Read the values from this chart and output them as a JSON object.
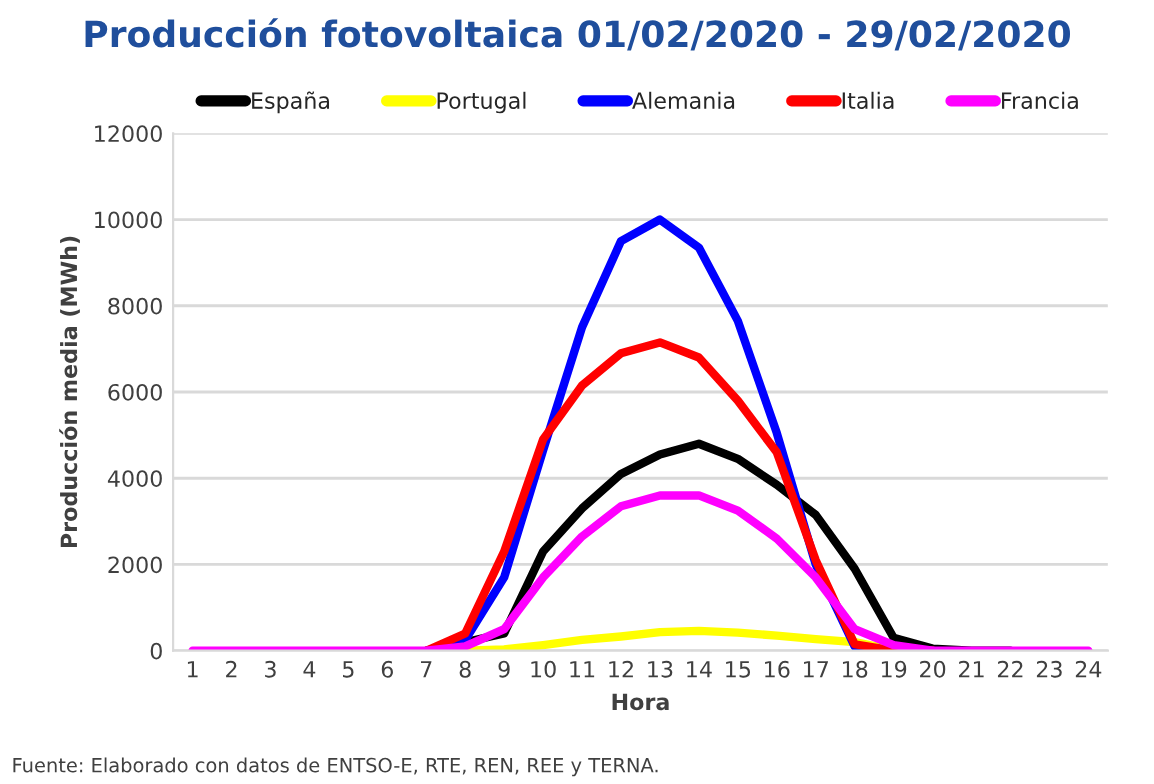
{
  "chart_data": {
    "type": "line",
    "title": "Producción fotovoltaica 01/02/2020 - 29/02/2020",
    "xlabel": "Hora",
    "ylabel": "Producción media (MWh)",
    "categories": [
      "1",
      "2",
      "3",
      "4",
      "5",
      "6",
      "7",
      "8",
      "9",
      "10",
      "11",
      "12",
      "13",
      "14",
      "15",
      "16",
      "17",
      "18",
      "19",
      "20",
      "21",
      "22",
      "23",
      "24"
    ],
    "series": [
      {
        "name": "España",
        "color": "#000000",
        "values": [
          null,
          null,
          null,
          null,
          null,
          null,
          0,
          null,
          400,
          2300,
          3300,
          4100,
          4550,
          4800,
          4450,
          3850,
          3150,
          1900,
          300,
          50,
          0,
          0,
          null,
          null
        ]
      },
      {
        "name": "Portugal",
        "color": "#ffff00",
        "values": [
          null,
          null,
          null,
          null,
          null,
          null,
          0,
          0,
          30,
          130,
          250,
          330,
          430,
          460,
          420,
          350,
          270,
          200,
          20,
          0,
          null,
          null,
          null,
          null
        ]
      },
      {
        "name": "Alemania",
        "color": "#0000ff",
        "values": [
          null,
          null,
          null,
          null,
          null,
          null,
          0,
          250,
          1700,
          4650,
          7500,
          9500,
          10000,
          9350,
          7650,
          5050,
          2000,
          100,
          0,
          0,
          null,
          null,
          null,
          null
        ]
      },
      {
        "name": "Italia",
        "color": "#ff0000",
        "values": [
          null,
          null,
          null,
          null,
          null,
          null,
          0,
          400,
          2300,
          4900,
          6150,
          6900,
          7150,
          6800,
          5800,
          4600,
          2100,
          150,
          0,
          0,
          null,
          null,
          null,
          null
        ]
      },
      {
        "name": "Francia",
        "color": "#ff00ff",
        "values": [
          0,
          0,
          0,
          0,
          0,
          0,
          0,
          100,
          500,
          1700,
          2650,
          3350,
          3600,
          3600,
          3250,
          2600,
          1700,
          500,
          130,
          0,
          0,
          0,
          0,
          0
        ]
      }
    ],
    "ylim": [
      0,
      12000
    ],
    "yticks": [
      0,
      2000,
      4000,
      6000,
      8000,
      10000,
      12000
    ],
    "grid": "y",
    "legend": "top",
    "marker": "none",
    "line_style": "solid",
    "annotations": [
      "Fuente: Elaborado con datos de ENTSO-E, RTE, REN, REE y TERNA."
    ]
  }
}
